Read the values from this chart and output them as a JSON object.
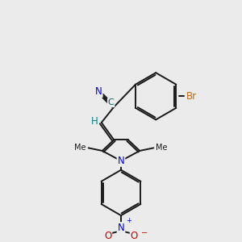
{
  "bg_color": "#ebebeb",
  "bond_color": "#1a1a1a",
  "N_color": "#0000ee",
  "O_color": "#cc0000",
  "Br_color": "#cc6600",
  "CN_color": "#006666",
  "H_color": "#008888",
  "lw": 1.4,
  "xlim": [
    -4.2,
    4.2
  ],
  "ylim": [
    -4.8,
    5.0
  ]
}
